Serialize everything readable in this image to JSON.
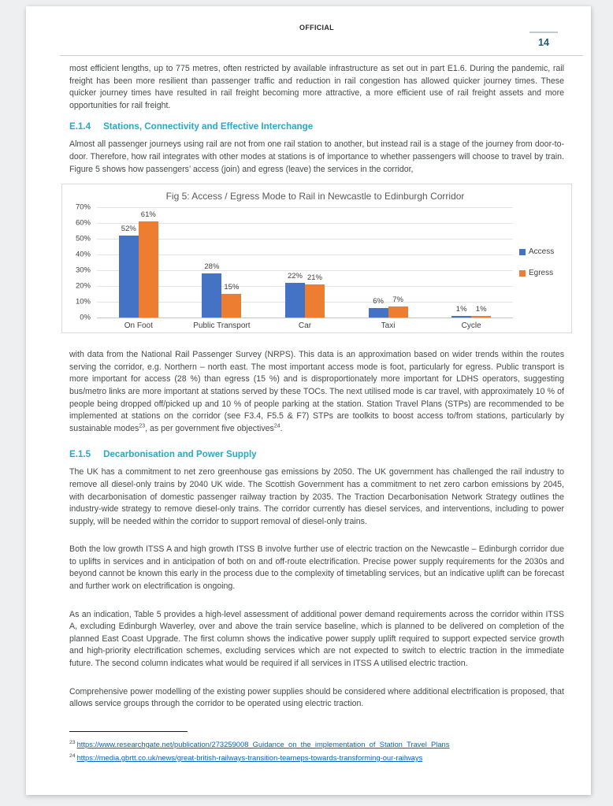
{
  "header": {
    "classification": "OFFICIAL",
    "page_number": "14"
  },
  "intro_paragraph": "most efficient lengths, up to 775 metres, often restricted by available infrastructure as set out in part E1.6. During the pandemic, rail freight has been more resilient than passenger traffic and reduction in rail congestion has allowed quicker journey times. These quicker journey times have resulted in rail freight becoming more attractive, a more efficient use of rail freight assets and more opportunities for rail freight.",
  "section_e14": {
    "number": "E.1.4",
    "title": "Stations, Connectivity and Effective Interchange",
    "paragraph": "Almost all passenger journeys using rail are not from one rail station to another, but instead rail is a stage of the journey from door-to-door. Therefore, how rail integrates with other modes at stations is of importance to whether passengers will choose to travel by train. Figure 5 shows how passengers’ access (join) and egress (leave) the services in the corridor,"
  },
  "chart_data": {
    "type": "bar",
    "title": "Fig 5: Access / Egress Mode to Rail in Newcastle to Edinburgh Corridor",
    "categories": [
      "On Foot",
      "Public Transport",
      "Car",
      "Taxi",
      "Cycle"
    ],
    "series": [
      {
        "name": "Access",
        "color": "#4472C4",
        "values": [
          52,
          28,
          22,
          6,
          1
        ]
      },
      {
        "name": "Egress",
        "color": "#ED7D31",
        "values": [
          61,
          15,
          21,
          7,
          1
        ]
      }
    ],
    "ylim": [
      0,
      70
    ],
    "y_tick_step": 10,
    "y_tick_labels": [
      "0%",
      "10%",
      "20%",
      "30%",
      "40%",
      "50%",
      "60%",
      "70%"
    ],
    "data_label_suffix": "%",
    "grid": true,
    "legend_position": "right",
    "xlabel": "",
    "ylabel": ""
  },
  "after_chart_paragraph": {
    "text_a": "with data from the National Rail Passenger Survey (NRPS). This data is an approximation based on wider trends within the routes serving the corridor, e.g. Northern – north east. The most important access mode is foot, particularly for egress. Public transport is more important for access (28 %) than egress (15 %) and is disproportionately more important for LDHS operators, suggesting bus/metro links are more important at stations served by these TOCs. The next utilised mode is car travel, with approximately 10 % of people being dropped off/picked up and 10 % of people parking at the station. Station Travel Plans (STPs) are recommended to be implemented at stations on the corridor (see F3.4, F5.5 & F7) STPs are toolkits to boost access to/from stations, particularly by sustainable modes",
    "sup_a": "23",
    "text_b": ", as per government five objectives",
    "sup_b": "24",
    "text_c": "."
  },
  "section_e15": {
    "number": "E.1.5",
    "title": "Decarbonisation and Power Supply",
    "paragraphs": [
      "The UK has a commitment to net zero greenhouse gas emissions by 2050. The UK government has challenged the rail industry to remove all diesel-only trains by 2040 UK wide. The Scottish Government has a commitment to net zero carbon emissions by 2045, with decarbonisation of domestic passenger railway traction by 2035. The Traction Decarbonisation Network Strategy outlines the industry-wide strategy to remove diesel-only trains. The corridor currently has diesel services, and interventions, including to power supply, will be needed within the corridor to support removal of diesel-only trains.",
      "Both the low growth ITSS A and high growth ITSS B involve further use of electric traction on the Newcastle – Edinburgh corridor due to uplifts in services and in anticipation of both on and off-route electrification. Precise power supply requirements for the 2030s and beyond cannot be known this early in the process due to the complexity of timetabling services, but an indicative uplift can be forecast and further work on electrification is ongoing.",
      "As an indication, Table 5 provides a high-level assessment of additional power demand requirements across the corridor within ITSS A, excluding Edinburgh Waverley, over and above the train service baseline, which is planned to be delivered on completion of the planned East Coast Upgrade.  The first column shows the indicative power supply uplift required to support expected service growth and high-priority electrification schemes, excluding services which are not expected to switch to electric traction in the immediate future. The second column indicates what would be required if all services in ITSS A utilised electric traction.",
      "Comprehensive power modelling of the existing power supplies should be considered where additional electrification is proposed, that allows service groups through the corridor to be operated using electric traction."
    ]
  },
  "footnotes": [
    {
      "marker": "23",
      "url": "https://www.researchgate.net/publication/273259008_Guidance_on_the_implementation_of_Station_Travel_Plans"
    },
    {
      "marker": "24",
      "url": "https://media.gbrtt.co.uk/news/great-british-railways-transition-teameps-towards-transforming-our-railways"
    }
  ]
}
